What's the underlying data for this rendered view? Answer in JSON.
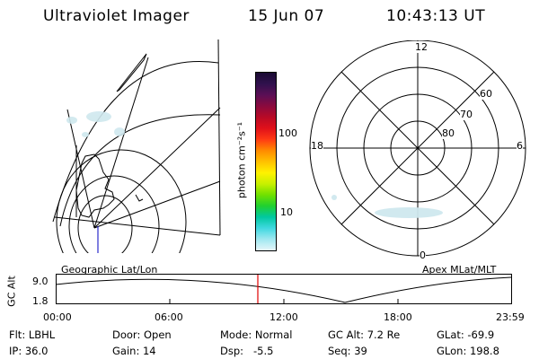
{
  "header": {
    "instrument": "Ultraviolet Imager",
    "date": "15 Jun 07",
    "time": "10:43:13 UT"
  },
  "colorbar": {
    "unit_label": "photon cm⁻²s⁻¹",
    "ticks": [
      "100",
      "10"
    ],
    "colors": [
      "#1a0a33",
      "#30114d",
      "#5a0f55",
      "#8a0a3e",
      "#b80a26",
      "#e0101a",
      "#ff3a14",
      "#ff8a00",
      "#ffc000",
      "#fff200",
      "#c8f000",
      "#70e000",
      "#20d030",
      "#00c8a0",
      "#40d8e0",
      "#a0e8f0",
      "#e6f6fa"
    ]
  },
  "polar_plot": {
    "mlt_labels": {
      "top": "12",
      "left": "18",
      "right": "6",
      "bottom": "0"
    },
    "lat_labels": [
      "60",
      "70",
      "80"
    ]
  },
  "captions": {
    "left": "Geographic Lat/Lon",
    "right": "Apex MLat/MLT"
  },
  "orbit": {
    "ylabel": "GC Alt",
    "ytick_top": "9.0",
    "ytick_bottom": "1.8",
    "xticks": [
      "00:00",
      "06:00",
      "12:00",
      "18:00",
      "23:59"
    ],
    "marker_color": "#e00000"
  },
  "info": {
    "flt_label": "Flt:",
    "flt_value": "LBHL",
    "ip_label": "IP:",
    "ip_value": "36.0",
    "door_label": "Door:",
    "door_value": "Open",
    "gain_label": "Gain:",
    "gain_value": "14",
    "mode_label": "Mode:",
    "mode_value": "Normal",
    "dsp_label": "Dsp:",
    "dsp_value": "-5.5",
    "gcalt_label": "GC Alt:",
    "gcalt_value": "7.2 Re",
    "seq_label": "Seq:",
    "seq_value": "39",
    "glat_label": "GLat:",
    "glat_value": "-69.9",
    "glon_label": "GLon:",
    "glon_value": "198.8"
  }
}
